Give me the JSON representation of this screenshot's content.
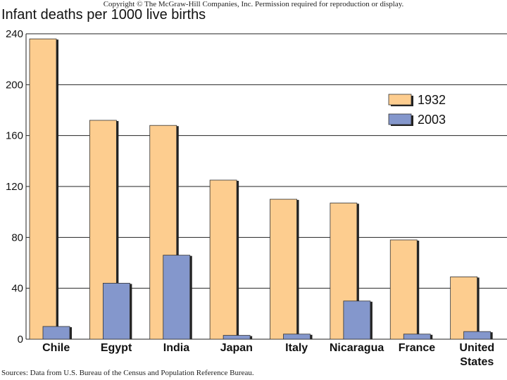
{
  "copyright": "Copyright © The McGraw-Hill Companies, Inc. Permission required for reproduction or display.",
  "source": "Sources: Data from U.S. Bureau of the Census and Population Reference Bureau.",
  "colors": {
    "series1932": "#fdcd8f",
    "series2003": "#8497cc",
    "grid": "#222222"
  },
  "chart_data": {
    "type": "bar",
    "title": "Infant deaths per 1000 live births",
    "ylim": [
      0,
      240
    ],
    "yticks": [
      0,
      40,
      80,
      120,
      160,
      200,
      240
    ],
    "grid": true,
    "legend_position": "top-right",
    "categories": [
      "Chile",
      "Egypt",
      "India",
      "Japan",
      "Italy",
      "Nicaragua",
      "France",
      "United States"
    ],
    "series": [
      {
        "name": "1932",
        "values": [
          236,
          172,
          168,
          125,
          110,
          107,
          78,
          49
        ]
      },
      {
        "name": "2003",
        "values": [
          10,
          44,
          66,
          3,
          4,
          30,
          4,
          6
        ]
      }
    ]
  }
}
